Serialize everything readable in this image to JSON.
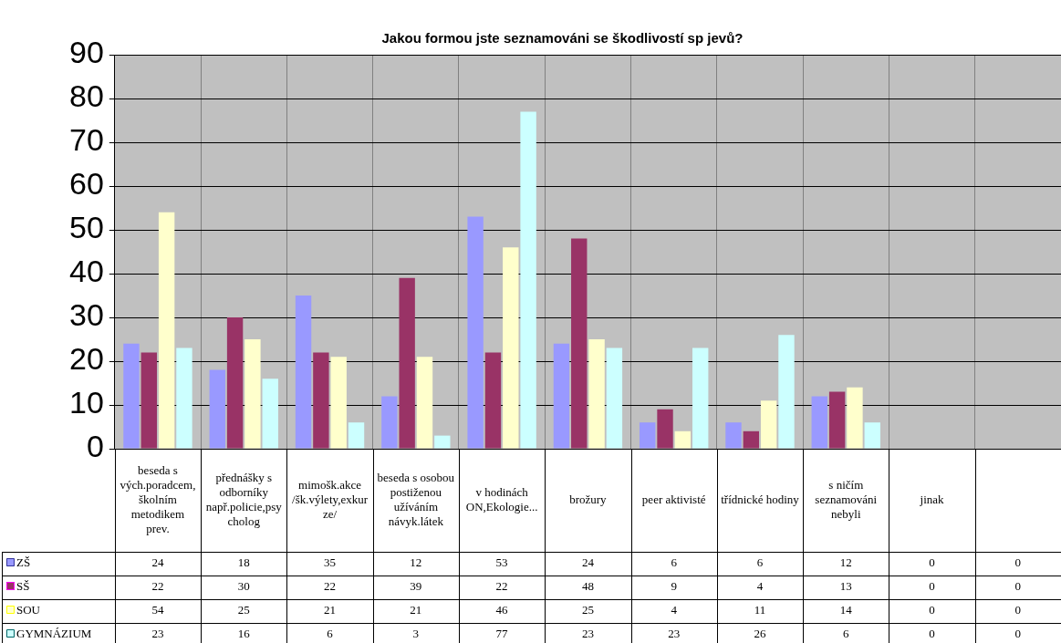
{
  "chart_data": {
    "type": "bar",
    "title": "Jakou formou jste seznamováni se škodlivostí sp jevů?",
    "categories": [
      "beseda s vých.poradcem,školním metodikem prev.",
      "přednášky s odborníky např.policie,psycholog",
      "mimošk.akce /šk.výlety,exkurze/",
      "beseda s osobou postiženou užíváním návyk.látek",
      "v hodinách ON,Ekologie...",
      "brožury",
      "peer aktivisté",
      "třídnické hodiny",
      "s ničím seznamováni nebyli",
      "jinak",
      null
    ],
    "series": [
      {
        "name": "ZŠ",
        "color": "#9999ff",
        "values": [
          24,
          18,
          35,
          12,
          53,
          24,
          6,
          6,
          12,
          0,
          0
        ]
      },
      {
        "name": "SŠ",
        "color": "#993366",
        "values": [
          22,
          30,
          22,
          39,
          22,
          48,
          9,
          4,
          13,
          0,
          0
        ]
      },
      {
        "name": "SOU",
        "color": "#ffffcc",
        "values": [
          54,
          25,
          21,
          21,
          46,
          25,
          4,
          11,
          14,
          0,
          0
        ]
      },
      {
        "name": "GYMNÁZIUM",
        "color": "#ccffff",
        "values": [
          23,
          16,
          6,
          3,
          77,
          23,
          23,
          26,
          6,
          0,
          0
        ]
      }
    ],
    "ylim": [
      0,
      90
    ],
    "yticks": [
      0,
      10,
      20,
      30,
      40,
      50,
      60,
      70,
      80,
      90
    ],
    "grid": true,
    "legend": "left",
    "data_labels": true
  }
}
